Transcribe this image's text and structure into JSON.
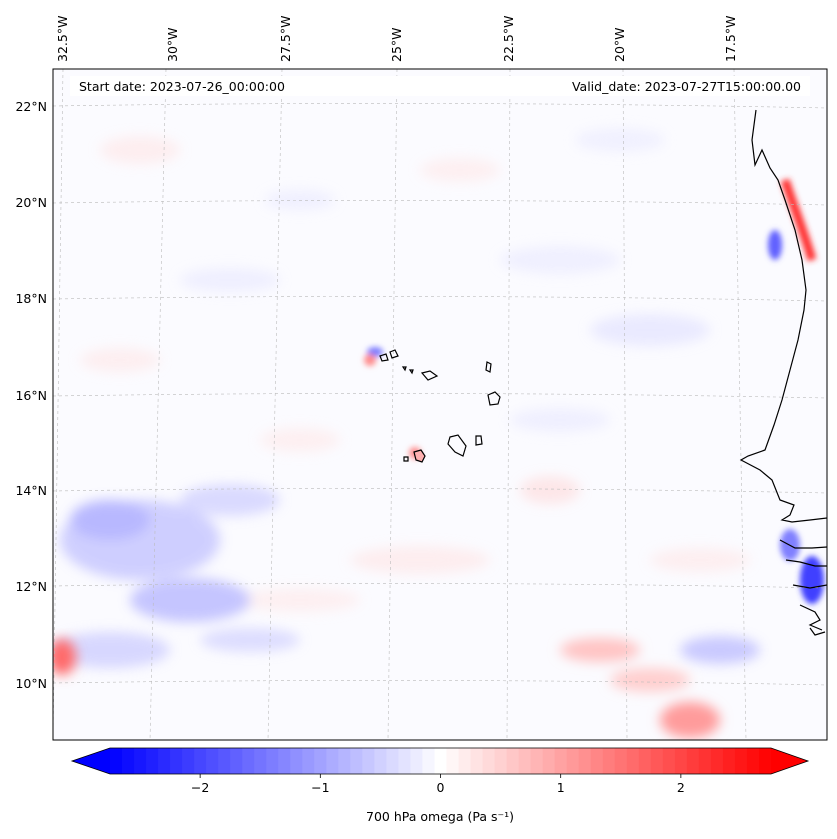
{
  "map": {
    "start_label": "Start date: 2023-07-26_00:00:00",
    "valid_label": "Valid_date: 2023-07-27T15:00:00.00",
    "lon_ticks": [
      "32.5°W",
      "30°W",
      "27.5°W",
      "25°W",
      "22.5°W",
      "20°W",
      "17.5°W"
    ],
    "lat_ticks": [
      "22°N",
      "20°N",
      "18°N",
      "16°N",
      "14°N",
      "12°N",
      "10°N"
    ],
    "field": "700 hPa omega",
    "units": "Pa s⁻¹"
  },
  "colorbar": {
    "label": "700 hPa omega (Pa s$^{-1}$)",
    "label_display": "700 hPa omega (Pa s⁻¹)",
    "ticks": [
      "−2",
      "−1",
      "0",
      "1",
      "2"
    ],
    "tick_values": [
      -2,
      -1,
      0,
      1,
      2
    ],
    "range": [
      -2.75,
      2.75
    ],
    "colors": {
      "low": "#0000ff",
      "mid": "#ffffff",
      "high": "#ff0000"
    },
    "levels": 55
  },
  "chart_data": {
    "type": "heatmap",
    "title": "",
    "variable": "700 hPa omega",
    "units": "Pa s-1",
    "vmin": -2.75,
    "vmax": 2.75,
    "colormap": "bwr",
    "lon_range_deg": [
      -33.2,
      -15.2
    ],
    "lat_range_deg": [
      8.8,
      22.8
    ],
    "notable_features": [
      "strong positive omega along Mauritanian coast near 19-20°N",
      "negative omega band over western ocean 11-14°N",
      "positive omega patch near 10-11°N southwest corner",
      "negative omega near Senegal/Gambia coast 11-13°N"
    ]
  }
}
